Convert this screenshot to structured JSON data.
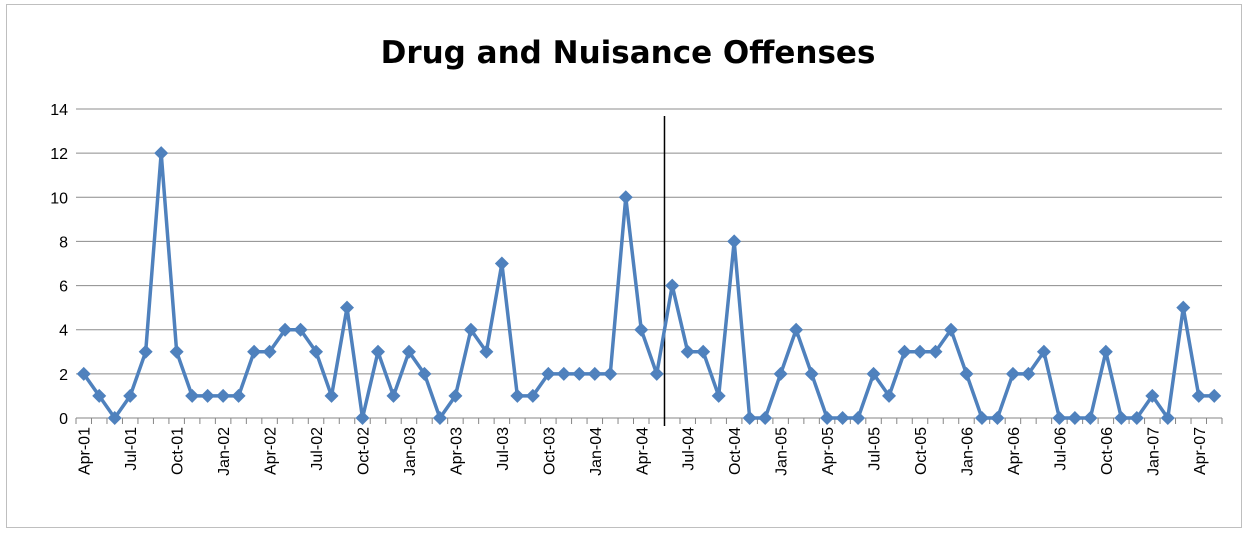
{
  "chart_data": {
    "type": "line",
    "title": "Drug and Nuisance Offenses",
    "xlabel": "",
    "ylabel": "",
    "ylim": [
      0,
      14
    ],
    "yticks": [
      "0",
      "2",
      "4",
      "6",
      "8",
      "10",
      "12",
      "14"
    ],
    "grid": true,
    "legend": "none",
    "x": [
      "Apr-01",
      "May-01",
      "Jun-01",
      "Jul-01",
      "Aug-01",
      "Sep-01",
      "Oct-01",
      "Nov-01",
      "Dec-01",
      "Jan-02",
      "Feb-02",
      "Mar-02",
      "Apr-02",
      "May-02",
      "Jun-02",
      "Jul-02",
      "Aug-02",
      "Sep-02",
      "Oct-02",
      "Nov-02",
      "Dec-02",
      "Jan-03",
      "Feb-03",
      "Mar-03",
      "Apr-03",
      "May-03",
      "Jun-03",
      "Jul-03",
      "Aug-03",
      "Sep-03",
      "Oct-03",
      "Nov-03",
      "Dec-03",
      "Jan-04",
      "Feb-04",
      "Mar-04",
      "Apr-04",
      "May-04",
      "Jun-04",
      "Jul-04",
      "Aug-04",
      "Sep-04",
      "Oct-04",
      "Nov-04",
      "Dec-04",
      "Jan-05",
      "Feb-05",
      "Mar-05",
      "Apr-05",
      "May-05",
      "Jun-05",
      "Jul-05",
      "Aug-05",
      "Sep-05",
      "Oct-05",
      "Nov-05",
      "Dec-05",
      "Jan-06",
      "Feb-06",
      "Mar-06",
      "Apr-06",
      "May-06",
      "Jun-06",
      "Jul-06",
      "Aug-06",
      "Sep-06",
      "Oct-06",
      "Nov-06",
      "Dec-06",
      "Jan-07",
      "Feb-07",
      "Mar-07",
      "Apr-07",
      "May-07"
    ],
    "x_tick_labels": [
      "Apr-01",
      "Jul-01",
      "Oct-01",
      "Jan-02",
      "Apr-02",
      "Jul-02",
      "Oct-02",
      "Jan-03",
      "Apr-03",
      "Jul-03",
      "Oct-03",
      "Jan-04",
      "Apr-04",
      "Jul-04",
      "Oct-04",
      "Jan-05",
      "Apr-05",
      "Jul-05",
      "Oct-05",
      "Jan-06",
      "Apr-06",
      "Jul-06",
      "Oct-06",
      "Jan-07",
      "Apr-07"
    ],
    "series": [
      {
        "values": [
          2,
          1,
          0,
          1,
          3,
          12,
          3,
          1,
          1,
          1,
          1,
          3,
          3,
          4,
          4,
          3,
          1,
          5,
          0,
          3,
          1,
          3,
          2,
          0,
          1,
          4,
          3,
          7,
          1,
          1,
          2,
          2,
          2,
          2,
          2,
          10,
          4,
          2,
          6,
          3,
          3,
          1,
          8,
          0,
          0,
          2,
          4,
          2,
          0,
          0,
          0,
          2,
          1,
          3,
          3,
          3,
          4,
          2,
          0,
          0,
          2,
          2,
          3,
          0,
          0,
          0,
          3,
          0,
          0,
          1,
          0,
          5,
          1,
          1
        ]
      }
    ],
    "series_color": "#4f81bd",
    "reference_line": {
      "after_x": "May-04",
      "color": "#000000"
    }
  }
}
